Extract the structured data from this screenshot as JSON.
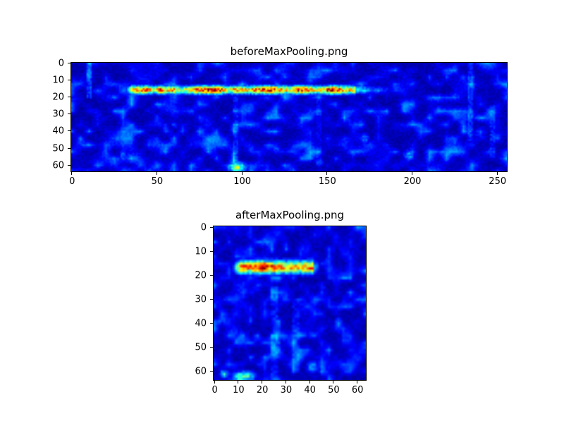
{
  "colors": {
    "figure_background": "#ffffff",
    "axis": "#000000",
    "colormap_low": "#00007f",
    "colormap_high": "#7f0000"
  },
  "chart_data": [
    {
      "type": "heatmap",
      "title": "beforeMaxPooling.png",
      "colormap": "jet",
      "grid": {
        "cols": 256,
        "rows": 64
      },
      "xlim": [
        0,
        255
      ],
      "ylim": [
        63,
        0
      ],
      "xticks": [
        0,
        50,
        100,
        150,
        200,
        250
      ],
      "yticks": [
        0,
        10,
        20,
        30,
        40,
        50,
        60
      ],
      "xlabel": "",
      "ylabel": "",
      "seed": 1337,
      "background": {
        "base": 0.02,
        "blotch": 0.25,
        "noise": 0.05,
        "scale": 5,
        "vscale": 4
      },
      "hot_band": {
        "x0": 32,
        "x1": 166,
        "fade_x1": 196,
        "y_center": 15.5,
        "y_sigma": 1.7,
        "peak": 1.0
      },
      "streaks": [
        {
          "x": 10,
          "y0": 0,
          "y1": 20,
          "strength": 0.16
        },
        {
          "x": 96,
          "y0": 20,
          "y1": 63,
          "strength": 0.1
        },
        {
          "x": 145,
          "y0": 20,
          "y1": 55,
          "strength": 0.08
        },
        {
          "x": 234,
          "y0": 0,
          "y1": 45,
          "strength": 0.12
        },
        {
          "x": 247,
          "y0": 25,
          "y1": 55,
          "strength": 0.1
        }
      ],
      "blobs": [
        {
          "x": 97,
          "y": 61,
          "rx": 4.0,
          "ry": 2.2,
          "v": 0.55
        },
        {
          "x": 10,
          "y": 6,
          "rx": 1.4,
          "ry": 4.0,
          "v": 0.32
        },
        {
          "x": 198,
          "y": 54,
          "rx": 2.5,
          "ry": 2.5,
          "v": 0.3
        },
        {
          "x": 172,
          "y": 44,
          "rx": 1.8,
          "ry": 2.5,
          "v": 0.26
        },
        {
          "x": 235,
          "y": 12,
          "rx": 1.4,
          "ry": 6.0,
          "v": 0.26
        },
        {
          "x": 30,
          "y": 54,
          "rx": 1.6,
          "ry": 3.5,
          "v": 0.24
        },
        {
          "x": 120,
          "y": 50,
          "rx": 1.8,
          "ry": 1.8,
          "v": 0.22
        },
        {
          "x": 60,
          "y": 36,
          "rx": 1.6,
          "ry": 1.6,
          "v": 0.2
        },
        {
          "x": 145,
          "y": 58,
          "rx": 2.0,
          "ry": 2.0,
          "v": 0.22
        }
      ]
    },
    {
      "type": "heatmap",
      "title": "afterMaxPooling.png",
      "colormap": "jet",
      "grid": {
        "cols": 64,
        "rows": 64
      },
      "xlim": [
        0,
        63
      ],
      "ylim": [
        63,
        0
      ],
      "xticks": [
        0,
        10,
        20,
        30,
        40,
        50,
        60
      ],
      "yticks": [
        0,
        10,
        20,
        30,
        40,
        50,
        60
      ],
      "xlabel": "",
      "ylabel": "",
      "seed": 2024,
      "background": {
        "base": 0.02,
        "blotch": 0.22,
        "noise": 0.05,
        "scale": 3,
        "vscale": 3
      },
      "hot_band": {
        "x0": 8,
        "x1": 41,
        "fade_x1": 45,
        "y_center": 16.5,
        "y_sigma": 1.9,
        "peak": 1.0
      },
      "streaks": [
        {
          "x": 25,
          "y0": 25,
          "y1": 63,
          "strength": 0.1
        },
        {
          "x": 34,
          "y0": 30,
          "y1": 60,
          "strength": 0.09
        }
      ],
      "blobs": [
        {
          "x": 12,
          "y": 62,
          "rx": 3.5,
          "ry": 1.6,
          "v": 0.5
        },
        {
          "x": 4,
          "y": 61,
          "rx": 1.6,
          "ry": 1.2,
          "v": 0.38
        },
        {
          "x": 26,
          "y": 46,
          "rx": 1.4,
          "ry": 3.2,
          "v": 0.3
        },
        {
          "x": 34,
          "y": 52,
          "rx": 1.3,
          "ry": 2.4,
          "v": 0.26
        },
        {
          "x": 41,
          "y": 58,
          "rx": 1.8,
          "ry": 1.8,
          "v": 0.3
        },
        {
          "x": 52,
          "y": 40,
          "rx": 1.3,
          "ry": 2.0,
          "v": 0.24
        },
        {
          "x": 45,
          "y": 25,
          "rx": 1.0,
          "ry": 1.8,
          "v": 0.2
        }
      ]
    }
  ]
}
